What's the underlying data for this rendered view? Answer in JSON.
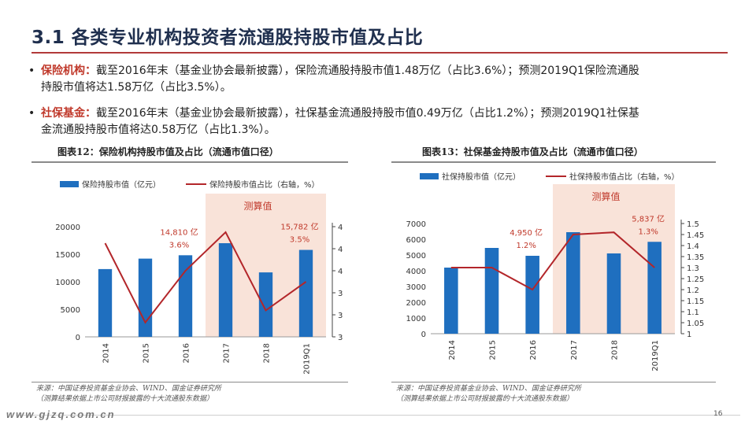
{
  "header": {
    "title": "3.1 各类专业机构投资者流通股持股市值及占比"
  },
  "bullets": [
    {
      "label": "保险机构：",
      "text": "截至2016年末（基金业协会最新披露），保险流通股持股市值1.48万亿（占比3.6%）；预测2019Q1保险流通股",
      "text2": "持股市值将达1.58万亿（占比3.5%）。"
    },
    {
      "label": "社保基金：",
      "text": "截至2016年末（基金业协会最新披露），社保基金流通股持股市值0.49万亿（占比1.2%）；预测2019Q1社保基",
      "text2": "金流通股持股市值将达0.58万亿（占比1.3%）。"
    }
  ],
  "figures": {
    "left_title": "图表12：保险机构持股市值及占比（流通市值口径）",
    "right_title": "图表13：社保基金持股市值及占比（流通市值口径）",
    "left_source": [
      "来源：中国证券投资基金业协会、WIND、国金证券研究所",
      "（测算结果依据上市公司财报披露的十大流通股东数据）"
    ],
    "right_source": [
      "来源：中国证券投资基金业协会、WIND、国金证券研究所",
      "（测算结果依据上市公司财报披露的十大流通股东数据）"
    ]
  },
  "footer": {
    "watermark": "www.gjzq.com.cn",
    "page": "16"
  },
  "colors": {
    "bar": "#1f6fbf",
    "line": "#b3262a",
    "shade": "#f9e3d9",
    "accent": "#c0392b"
  },
  "chart_data": [
    {
      "type": "bar",
      "categories": [
        "2014",
        "2015",
        "2016",
        "2017",
        "2018",
        "2019Q1"
      ],
      "series": [
        {
          "name": "保险持股市值（亿元）",
          "type": "bar",
          "axis": "left",
          "values": [
            12300,
            14200,
            14810,
            17000,
            11700,
            15782
          ]
        },
        {
          "name": "保险持股市值占比（右轴，%）",
          "type": "line",
          "axis": "right",
          "values": [
            3.85,
            3.13,
            3.6,
            3.95,
            3.24,
            3.5
          ]
        }
      ],
      "ylim": [
        0,
        20000
      ],
      "yticks": [
        0,
        5000,
        10000,
        15000,
        20000
      ],
      "y2lim": [
        3.0,
        4.0
      ],
      "y2ticks": [
        "3",
        "3",
        "3",
        "4",
        "4",
        "4"
      ],
      "shaded_label": "测算值",
      "shaded_from": "2017",
      "annotations": [
        {
          "value": "14,810 亿",
          "pct": "3.6%",
          "category": "2016"
        },
        {
          "value": "15,782 亿",
          "pct": "3.5%",
          "category": "2019Q1"
        }
      ],
      "legend": "top"
    },
    {
      "type": "bar",
      "categories": [
        "2014",
        "2015",
        "2016",
        "2017",
        "2018",
        "2019Q1"
      ],
      "series": [
        {
          "name": "社保持股市值（亿元）",
          "type": "bar",
          "axis": "left",
          "values": [
            4200,
            5450,
            4950,
            6450,
            5100,
            5837
          ]
        },
        {
          "name": "社保持股市值占比（右轴，%）",
          "type": "line",
          "axis": "right",
          "values": [
            1.3,
            1.3,
            1.2,
            1.45,
            1.46,
            1.3
          ]
        }
      ],
      "ylim": [
        0,
        7000
      ],
      "yticks": [
        0,
        1000,
        2000,
        3000,
        4000,
        5000,
        6000,
        7000
      ],
      "y2lim": [
        1.0,
        1.5
      ],
      "y2ticks": [
        "1",
        "1.05",
        "1.1",
        "1.15",
        "1.2",
        "1.25",
        "1.3",
        "1.35",
        "1.4",
        "1.45",
        "1.5"
      ],
      "shaded_label": "测算值",
      "shaded_from": "2017",
      "annotations": [
        {
          "value": "4,950 亿",
          "pct": "1.2%",
          "category": "2016"
        },
        {
          "value": "5,837 亿",
          "pct": "1.3%",
          "category": "2019Q1"
        }
      ],
      "legend": "top"
    }
  ]
}
